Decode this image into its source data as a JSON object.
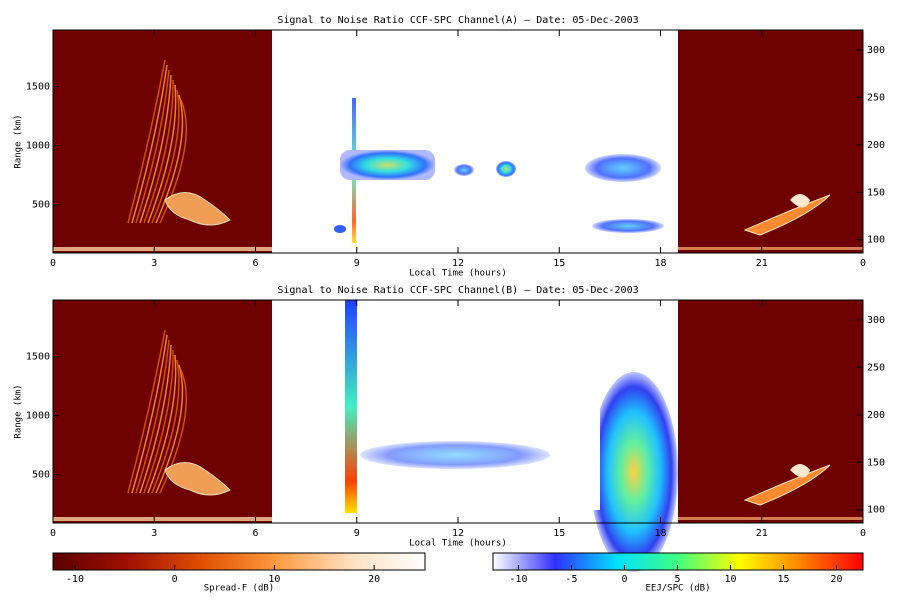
{
  "chart_data": [
    {
      "type": "heatmap",
      "title": "Signal to Noise Ratio CCF-SPC Channel(A) — Date: 05-Dec-2003",
      "xlabel": "Local Time (hours)",
      "ylabel": "Range (km)",
      "xlim": [
        0,
        24
      ],
      "xticks": [
        0,
        3,
        6,
        9,
        12,
        15,
        18,
        21,
        {
          "value": 24,
          "label": "0"
        }
      ],
      "ylim": [
        90,
        1980
      ],
      "yticks": [
        500,
        1000,
        1500
      ],
      "y2lim": [
        86,
        321
      ],
      "y2ticks": [
        100,
        150,
        200,
        250,
        300
      ]
    },
    {
      "type": "heatmap",
      "title": "Signal to Noise Ratio CCF-SPC Channel(B) — Date: 05-Dec-2003",
      "xlabel": "Local Time (hours)",
      "ylabel": "Range (km)",
      "xlim": [
        0,
        24
      ],
      "xticks": [
        0,
        3,
        6,
        9,
        12,
        15,
        18,
        21,
        {
          "value": 24,
          "label": "0"
        }
      ],
      "ylim": [
        90,
        1980
      ],
      "yticks": [
        500,
        1000,
        1500
      ],
      "y2lim": [
        86,
        321
      ],
      "y2ticks": [
        100,
        150,
        200,
        250,
        300
      ]
    }
  ],
  "colorbars": [
    {
      "label": "Spread-F (dB)",
      "lim": [
        -12.2,
        25.1
      ],
      "ticks": [
        -10,
        0,
        10,
        20
      ],
      "colors": [
        "#5a0000",
        "#a01000",
        "#e05000",
        "#ff9a40",
        "#ffe0c0",
        "#ffffff"
      ]
    },
    {
      "label": "EEJ/SPC (dB)",
      "lim": [
        -12.4,
        22.5
      ],
      "ticks": [
        -10,
        -5,
        0,
        5,
        10,
        15,
        20
      ],
      "colors": [
        "#ffffff",
        "#3030ff",
        "#00e0ff",
        "#40ff80",
        "#ffff00",
        "#ff8000",
        "#ff0000"
      ]
    }
  ]
}
